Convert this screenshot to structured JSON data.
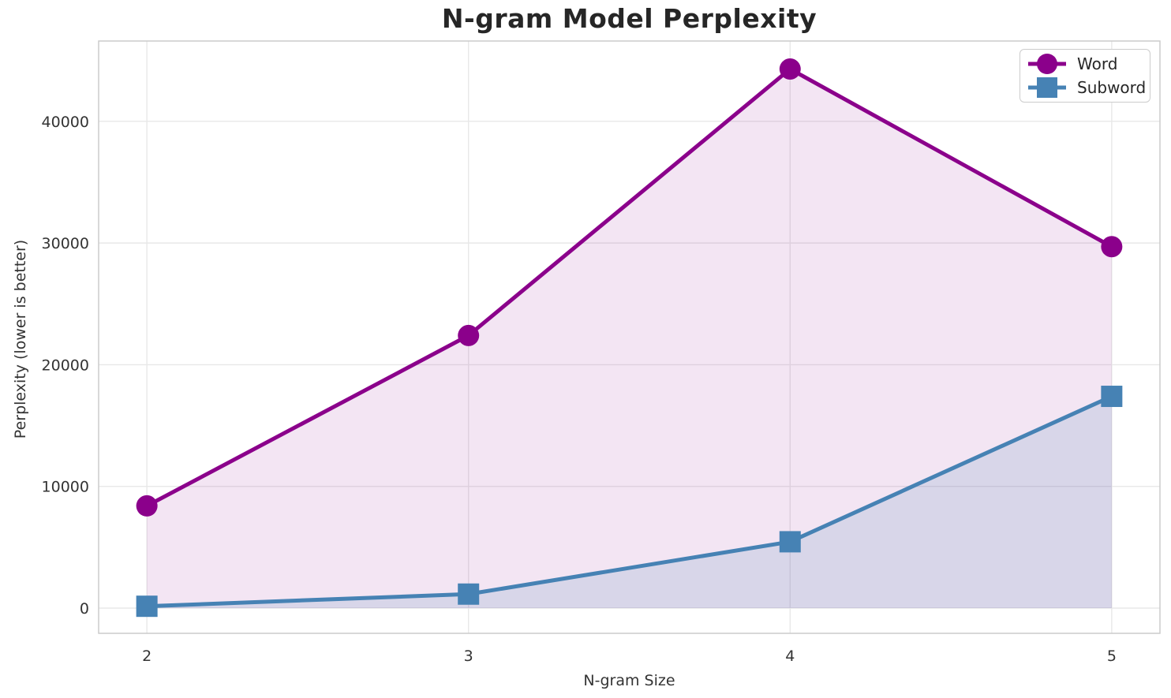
{
  "chart_data": {
    "type": "line",
    "title": "N-gram Model Perplexity",
    "xlabel": "N-gram Size",
    "ylabel": "Perplexity (lower is better)",
    "x": [
      2,
      3,
      4,
      5
    ],
    "series": [
      {
        "name": "Word",
        "marker": "circle",
        "color": "#8B008B",
        "line_width": 5,
        "marker_size": 27,
        "fill_opacity": 0.1,
        "values": [
          8400,
          22400,
          44300,
          29700
        ]
      },
      {
        "name": "Subword",
        "marker": "square",
        "color": "#4682B4",
        "line_width": 5,
        "marker_size": 27,
        "fill_opacity": 0.15,
        "values": [
          150,
          1150,
          5450,
          17400
        ]
      }
    ],
    "xticks": [
      2,
      3,
      4,
      5
    ],
    "yticks": [
      0,
      10000,
      20000,
      30000,
      40000
    ],
    "xlim": [
      1.85,
      5.15
    ],
    "ylim": [
      -2074,
      46600
    ],
    "fill_baseline": 0,
    "grid": true,
    "legend_position": "upper right",
    "colors": {
      "grid": "#E8E8E8",
      "spine": "#CBCBCB",
      "tick_text": "#333333",
      "title_text": "#262626",
      "background": "#FFFFFF"
    }
  }
}
